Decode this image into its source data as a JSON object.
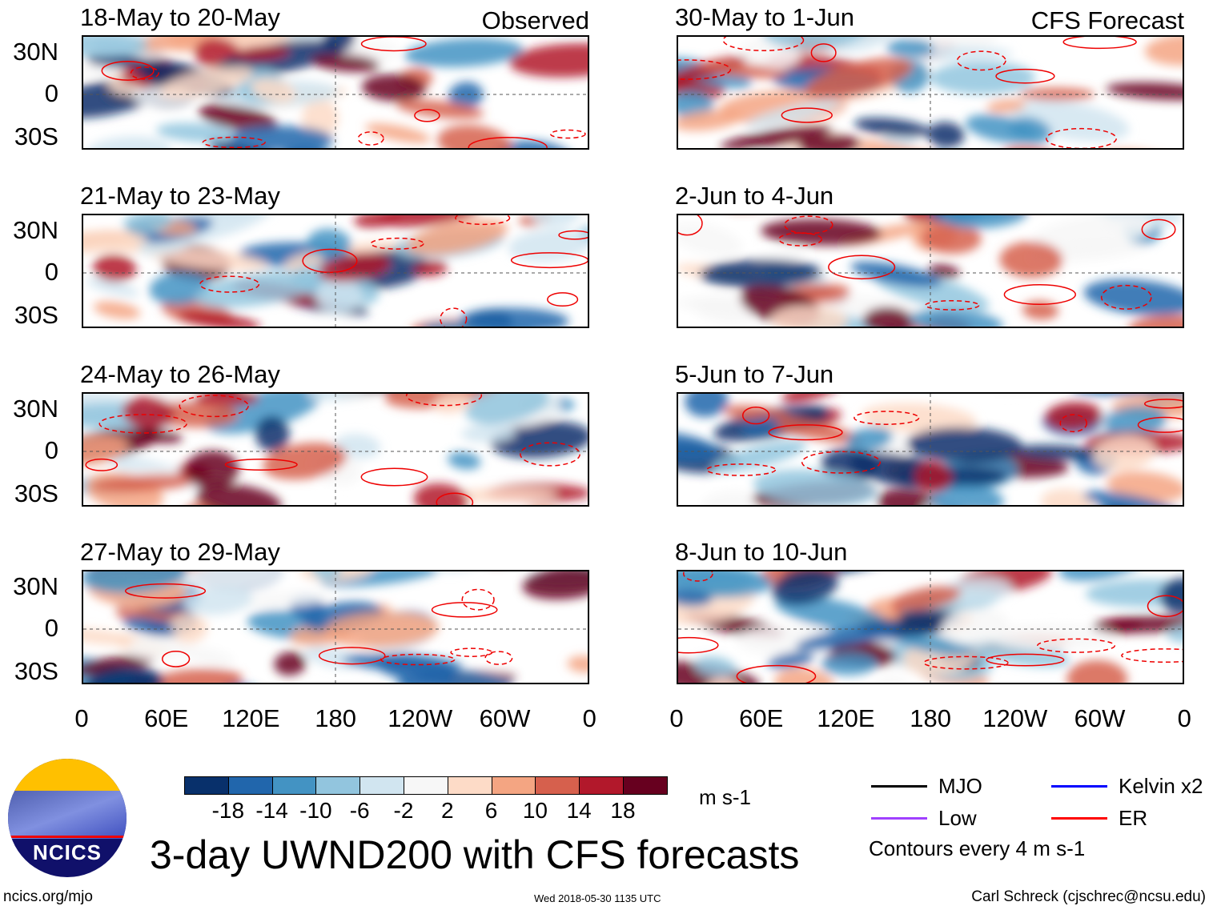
{
  "left_column": {
    "label": "Observed",
    "panels": [
      "18-May to 20-May",
      "21-May to 23-May",
      "24-May to 26-May",
      "27-May to 29-May"
    ]
  },
  "right_column": {
    "label": "CFS Forecast",
    "panels": [
      "30-May to 1-Jun",
      "2-Jun to 4-Jun",
      "5-Jun to 7-Jun",
      "8-Jun to 10-Jun"
    ]
  },
  "y_labels": [
    "30N",
    "0",
    "30S"
  ],
  "x_labels": [
    "0",
    "60E",
    "120E",
    "180",
    "120W",
    "60W",
    "0"
  ],
  "colorbar": {
    "labels": [
      "-18",
      "-14",
      "-10",
      "-6",
      "-2",
      "2",
      "6",
      "10",
      "14",
      "18"
    ],
    "units": "m s-1",
    "colors": [
      "#08306b",
      "#2166ac",
      "#4393c3",
      "#92c5de",
      "#d1e5f0",
      "#f7f7f7",
      "#fddbc7",
      "#f4a582",
      "#d6604d",
      "#b2182b",
      "#67001f"
    ]
  },
  "legend": {
    "items": [
      {
        "label": "MJO",
        "color": "#000000"
      },
      {
        "label": "Kelvin x2",
        "color": "#0000ff"
      },
      {
        "label": "Low",
        "color": "#a040ff"
      },
      {
        "label": "ER",
        "color": "#ff0000"
      }
    ],
    "note": "Contours every 4 m s-1"
  },
  "title": "3-day UWND200 with CFS forecasts",
  "logo_text": "NCICS",
  "footer": {
    "url": "ncics.org/mjo",
    "timestamp": "Wed 2018-05-30 1135 UTC",
    "author": "Carl Schreck (cjschrec@ncsu.edu)"
  }
}
